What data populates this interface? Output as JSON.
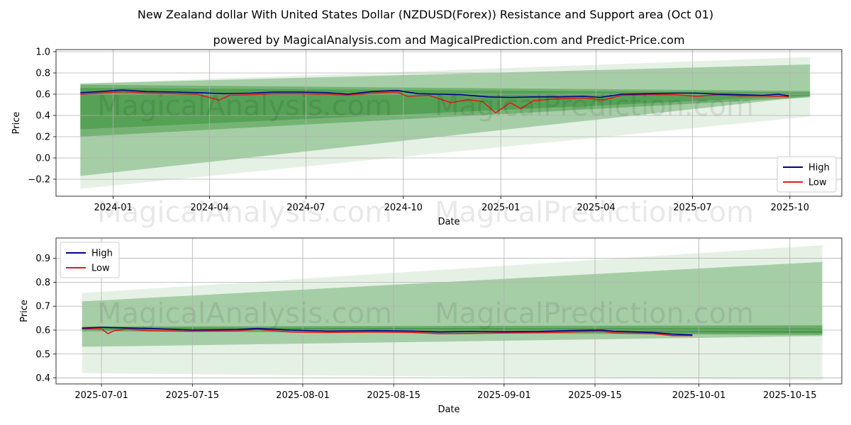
{
  "title": "New Zealand dollar With United States Dollar (NZDUSD(Forex)) Resistance and Support area (Oct 01)",
  "watermark_left": "MagicalAnalysis.com",
  "watermark_right": "MagicalPrediction.com",
  "chart_data": [
    {
      "type": "line",
      "title": "powered by MagicalAnalysis.com and MagicalPrediction.com and Predict-Price.com",
      "xlabel": "Date",
      "ylabel": "Price",
      "xlim": [
        "2023-11-08",
        "2025-11-19"
      ],
      "ylim": [
        -0.36,
        1.02
      ],
      "yticks": [
        -0.2,
        0.0,
        0.2,
        0.4,
        0.6,
        0.8,
        1.0
      ],
      "ytick_labels": [
        "−0.2",
        "0.0",
        "0.2",
        "0.4",
        "0.6",
        "0.8",
        "1.0"
      ],
      "xticks": [
        "2024-01-01",
        "2024-04-01",
        "2024-07-01",
        "2024-10-01",
        "2025-01-01",
        "2025-04-01",
        "2025-07-01",
        "2025-10-01"
      ],
      "xtick_labels": [
        "2024-01",
        "2024-04",
        "2024-07",
        "2024-10",
        "2025-01",
        "2025-04",
        "2025-07",
        "2025-10"
      ],
      "grid": true,
      "legend": {
        "position": "lower-right",
        "entries": [
          {
            "name": "High",
            "color": "#00008b"
          },
          {
            "name": "Low",
            "color": "#e31a1c"
          }
        ]
      },
      "bands": [
        {
          "name": "outer-wide",
          "x": [
            "2023-12-01",
            "2025-10-20"
          ],
          "lower": [
            -0.29,
            0.39
          ],
          "upper": [
            0.7,
            0.95
          ],
          "color": "#2e8b2e",
          "opacity": 0.12
        },
        {
          "name": "wide",
          "x": [
            "2023-12-01",
            "2025-10-20"
          ],
          "lower": [
            -0.17,
            0.58
          ],
          "upper": [
            0.7,
            0.88
          ],
          "color": "#2e8b2e",
          "opacity": 0.35
        },
        {
          "name": "mid",
          "x": [
            "2023-12-01",
            "2025-10-20"
          ],
          "lower": [
            0.2,
            0.57
          ],
          "upper": [
            0.69,
            0.63
          ],
          "color": "#2e8b2e",
          "opacity": 0.4
        },
        {
          "name": "inner",
          "x": [
            "2023-12-01",
            "2025-10-20"
          ],
          "lower": [
            0.27,
            0.585
          ],
          "upper": [
            0.66,
            0.615
          ],
          "color": "#2e8b2e",
          "opacity": 0.45
        }
      ],
      "series": [
        {
          "name": "High",
          "color": "#00008b",
          "x": [
            "2023-12-01",
            "2023-12-20",
            "2024-01-10",
            "2024-02-01",
            "2024-03-01",
            "2024-03-20",
            "2024-04-15",
            "2024-05-10",
            "2024-06-01",
            "2024-06-25",
            "2024-07-20",
            "2024-08-10",
            "2024-09-01",
            "2024-09-25",
            "2024-10-15",
            "2024-11-05",
            "2024-11-25",
            "2024-12-20",
            "2025-01-10",
            "2025-02-01",
            "2025-02-25",
            "2025-03-20",
            "2025-04-05",
            "2025-04-25",
            "2025-05-20",
            "2025-06-15",
            "2025-07-05",
            "2025-07-25",
            "2025-08-15",
            "2025-09-05",
            "2025-09-20",
            "2025-09-30"
          ],
          "y": [
            0.615,
            0.625,
            0.64,
            0.625,
            0.62,
            0.615,
            0.605,
            0.61,
            0.62,
            0.62,
            0.615,
            0.6,
            0.625,
            0.635,
            0.605,
            0.6,
            0.595,
            0.575,
            0.57,
            0.575,
            0.575,
            0.58,
            0.57,
            0.6,
            0.605,
            0.61,
            0.61,
            0.6,
            0.595,
            0.59,
            0.6,
            0.585
          ]
        },
        {
          "name": "Low",
          "color": "#e31a1c",
          "x": [
            "2023-12-01",
            "2023-12-20",
            "2024-01-10",
            "2024-02-01",
            "2024-03-01",
            "2024-03-20",
            "2024-04-10",
            "2024-04-20",
            "2024-05-10",
            "2024-06-01",
            "2024-06-25",
            "2024-07-20",
            "2024-08-10",
            "2024-09-01",
            "2024-09-25",
            "2024-10-05",
            "2024-10-25",
            "2024-11-15",
            "2024-12-01",
            "2024-12-15",
            "2024-12-27",
            "2025-01-10",
            "2025-01-20",
            "2025-02-01",
            "2025-02-20",
            "2025-03-20",
            "2025-04-08",
            "2025-04-25",
            "2025-05-20",
            "2025-06-15",
            "2025-07-05",
            "2025-07-25",
            "2025-08-15",
            "2025-09-05",
            "2025-09-20",
            "2025-09-30"
          ],
          "y": [
            0.6,
            0.61,
            0.625,
            0.61,
            0.605,
            0.6,
            0.545,
            0.59,
            0.595,
            0.605,
            0.605,
            0.6,
            0.59,
            0.61,
            0.62,
            0.58,
            0.59,
            0.52,
            0.55,
            0.53,
            0.425,
            0.52,
            0.465,
            0.54,
            0.555,
            0.565,
            0.545,
            0.59,
            0.595,
            0.595,
            0.58,
            0.595,
            0.585,
            0.585,
            0.58,
            0.575
          ]
        }
      ]
    },
    {
      "type": "line",
      "title": "",
      "xlabel": "Date",
      "ylabel": "Price",
      "xlim": [
        "2025-06-24",
        "2025-10-23"
      ],
      "ylim": [
        0.375,
        0.985
      ],
      "yticks": [
        0.4,
        0.5,
        0.6,
        0.7,
        0.8,
        0.9
      ],
      "ytick_labels": [
        "0.4",
        "0.5",
        "0.6",
        "0.7",
        "0.8",
        "0.9"
      ],
      "xticks": [
        "2025-07-01",
        "2025-07-15",
        "2025-08-01",
        "2025-08-15",
        "2025-09-01",
        "2025-09-15",
        "2025-10-01",
        "2025-10-15"
      ],
      "xtick_labels": [
        "2025-07-01",
        "2025-07-15",
        "2025-08-01",
        "2025-08-15",
        "2025-09-01",
        "2025-09-15",
        "2025-10-01",
        "2025-10-15"
      ],
      "grid": true,
      "legend": {
        "position": "upper-left",
        "entries": [
          {
            "name": "High",
            "color": "#00008b"
          },
          {
            "name": "Low",
            "color": "#e31a1c"
          }
        ]
      },
      "bands": [
        {
          "name": "outer-wide",
          "x": [
            "2025-06-28",
            "2025-10-20"
          ],
          "lower": [
            0.42,
            0.39
          ],
          "upper": [
            0.755,
            0.955
          ],
          "color": "#2e8b2e",
          "opacity": 0.12
        },
        {
          "name": "wide",
          "x": [
            "2025-06-28",
            "2025-10-20"
          ],
          "lower": [
            0.53,
            0.575
          ],
          "upper": [
            0.72,
            0.885
          ],
          "color": "#2e8b2e",
          "opacity": 0.35
        },
        {
          "name": "mid",
          "x": [
            "2025-06-28",
            "2025-10-20"
          ],
          "lower": [
            0.595,
            0.58
          ],
          "upper": [
            0.615,
            0.62
          ],
          "color": "#2e8b2e",
          "opacity": 0.5
        },
        {
          "name": "inner",
          "x": [
            "2025-06-28",
            "2025-10-20"
          ],
          "lower": [
            0.6,
            0.588
          ],
          "upper": [
            0.61,
            0.607
          ],
          "color": "#2e8b2e",
          "opacity": 0.55
        }
      ],
      "series": [
        {
          "name": "High",
          "color": "#00008b",
          "x": [
            "2025-06-28",
            "2025-07-01",
            "2025-07-03",
            "2025-07-08",
            "2025-07-15",
            "2025-07-22",
            "2025-07-25",
            "2025-07-30",
            "2025-08-05",
            "2025-08-12",
            "2025-08-18",
            "2025-08-22",
            "2025-08-27",
            "2025-09-01",
            "2025-09-06",
            "2025-09-11",
            "2025-09-16",
            "2025-09-18",
            "2025-09-24",
            "2025-09-27",
            "2025-09-30"
          ],
          "y": [
            0.608,
            0.612,
            0.61,
            0.607,
            0.6,
            0.602,
            0.607,
            0.6,
            0.596,
            0.598,
            0.596,
            0.592,
            0.594,
            0.593,
            0.594,
            0.598,
            0.6,
            0.595,
            0.59,
            0.583,
            0.58
          ]
        },
        {
          "name": "Low",
          "color": "#e31a1c",
          "x": [
            "2025-06-28",
            "2025-07-01",
            "2025-07-02",
            "2025-07-03",
            "2025-07-05",
            "2025-07-08",
            "2025-07-15",
            "2025-07-22",
            "2025-07-25",
            "2025-07-30",
            "2025-08-05",
            "2025-08-12",
            "2025-08-18",
            "2025-08-22",
            "2025-08-27",
            "2025-09-01",
            "2025-09-06",
            "2025-09-11",
            "2025-09-16",
            "2025-09-18",
            "2025-09-24",
            "2025-09-27",
            "2025-09-30"
          ],
          "y": [
            0.605,
            0.605,
            0.585,
            0.598,
            0.604,
            0.598,
            0.595,
            0.597,
            0.603,
            0.592,
            0.59,
            0.592,
            0.59,
            0.585,
            0.586,
            0.588,
            0.589,
            0.592,
            0.596,
            0.588,
            0.585,
            0.577,
            0.577
          ]
        }
      ]
    }
  ]
}
